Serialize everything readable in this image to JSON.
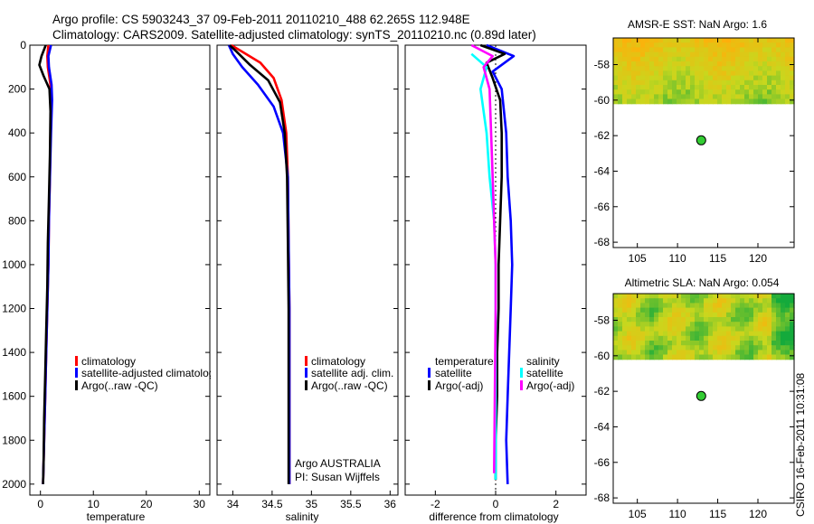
{
  "header": {
    "line1": "Argo profile: CS 5903243_37 09-Feb-2011 20110210_488 62.265S 112.948E",
    "line2": "Climatology: CARS2009. Satellite-adjusted climatology: synTS_20110210.nc (0.89d later)"
  },
  "credit": "CSIRO 16-Feb-2011 10:31:08",
  "colors": {
    "red": "#ff0000",
    "blue": "#0000ff",
    "black": "#000000",
    "cyan": "#00ffff",
    "magenta": "#ff00ff",
    "marker": "#33cc33"
  },
  "chart_data": [
    {
      "id": "temperature",
      "type": "line",
      "xlabel": "temperature",
      "xlim": [
        -2,
        32
      ],
      "ylim": [
        2050,
        0
      ],
      "xticks": [
        0,
        10,
        20,
        30
      ],
      "yticks": [
        0,
        200,
        400,
        600,
        800,
        1000,
        1200,
        1400,
        1600,
        1800,
        2000
      ],
      "legend": [
        "climatology",
        "satellite-adjusted climatology",
        "Argo(..raw -QC)"
      ],
      "series": [
        {
          "name": "climatology",
          "color": "red",
          "points": [
            [
              1.5,
              0
            ],
            [
              1.3,
              50
            ],
            [
              1.4,
              100
            ],
            [
              1.9,
              180
            ],
            [
              2.0,
              250
            ],
            [
              1.9,
              400
            ],
            [
              1.8,
              600
            ],
            [
              1.6,
              800
            ],
            [
              1.5,
              1000
            ],
            [
              1.3,
              1200
            ],
            [
              1.1,
              1400
            ],
            [
              0.9,
              1600
            ],
            [
              0.7,
              1800
            ],
            [
              0.5,
              2000
            ]
          ]
        },
        {
          "name": "satellite-adjusted climatology",
          "color": "blue",
          "points": [
            [
              2.0,
              0
            ],
            [
              1.5,
              50
            ],
            [
              1.6,
              100
            ],
            [
              2.1,
              180
            ],
            [
              2.2,
              250
            ],
            [
              2.0,
              400
            ],
            [
              1.8,
              600
            ],
            [
              1.6,
              800
            ],
            [
              1.5,
              1000
            ],
            [
              1.3,
              1200
            ],
            [
              1.1,
              1400
            ],
            [
              0.9,
              1600
            ],
            [
              0.7,
              1800
            ],
            [
              0.5,
              2000
            ]
          ]
        },
        {
          "name": "Argo(..raw -QC)",
          "color": "black",
          "points": [
            [
              1.0,
              0
            ],
            [
              0.2,
              50
            ],
            [
              -0.2,
              90
            ],
            [
              0.6,
              140
            ],
            [
              1.7,
              200
            ],
            [
              1.9,
              300
            ],
            [
              1.8,
              500
            ],
            [
              1.6,
              700
            ],
            [
              1.4,
              900
            ],
            [
              1.3,
              1100
            ],
            [
              1.1,
              1300
            ],
            [
              0.9,
              1500
            ],
            [
              0.7,
              1700
            ],
            [
              0.6,
              1900
            ],
            [
              0.5,
              2000
            ]
          ]
        }
      ]
    },
    {
      "id": "salinity",
      "type": "line",
      "xlabel": "salinity",
      "xlim": [
        33.8,
        36.1
      ],
      "ylim": [
        2050,
        0
      ],
      "xticks": [
        34,
        34.5,
        35,
        35.5,
        36
      ],
      "yticks": [
        0,
        200,
        400,
        600,
        800,
        1000,
        1200,
        1400,
        1600,
        1800,
        2000
      ],
      "legend": [
        "climatology",
        "satellite adj. clim.",
        "Argo(..raw -QC)"
      ],
      "annotation": [
        "Argo AUSTRALIA",
        "PI: Susan Wijffels"
      ],
      "series": [
        {
          "name": "climatology",
          "color": "red",
          "points": [
            [
              33.98,
              0
            ],
            [
              34.12,
              30
            ],
            [
              34.35,
              80
            ],
            [
              34.52,
              150
            ],
            [
              34.62,
              250
            ],
            [
              34.68,
              400
            ],
            [
              34.7,
              600
            ],
            [
              34.71,
              900
            ],
            [
              34.72,
              1200
            ],
            [
              34.72,
              1500
            ],
            [
              34.72,
              2000
            ]
          ]
        },
        {
          "name": "satellite adj. clim.",
          "color": "blue",
          "points": [
            [
              33.95,
              0
            ],
            [
              34.0,
              40
            ],
            [
              34.12,
              100
            ],
            [
              34.32,
              180
            ],
            [
              34.52,
              280
            ],
            [
              34.64,
              400
            ],
            [
              34.7,
              600
            ],
            [
              34.71,
              900
            ],
            [
              34.72,
              1200
            ],
            [
              34.72,
              1500
            ],
            [
              34.72,
              2000
            ]
          ]
        },
        {
          "name": "Argo(..raw -QC)",
          "color": "black",
          "points": [
            [
              33.96,
              0
            ],
            [
              34.05,
              30
            ],
            [
              34.22,
              90
            ],
            [
              34.45,
              160
            ],
            [
              34.6,
              260
            ],
            [
              34.66,
              400
            ],
            [
              34.69,
              600
            ],
            [
              34.7,
              900
            ],
            [
              34.71,
              1200
            ],
            [
              34.71,
              1500
            ],
            [
              34.71,
              2000
            ]
          ]
        }
      ]
    },
    {
      "id": "difference",
      "type": "line",
      "xlabel": "difference from climatology",
      "xlim": [
        -3,
        3
      ],
      "ylim": [
        2050,
        0
      ],
      "xticks": [
        -2,
        0,
        2
      ],
      "yticks": [
        0,
        200,
        400,
        600,
        800,
        1000,
        1200,
        1400,
        1600,
        1800,
        2000
      ],
      "legend": [
        "temperature",
        "satellite",
        "Argo(-adj)",
        "salinity",
        "satellite",
        "Argo(-adj)"
      ],
      "series": [
        {
          "name": "satellite",
          "color": "blue",
          "points": [
            [
              -0.3,
              0
            ],
            [
              0.6,
              50
            ],
            [
              -0.1,
              120
            ],
            [
              0.2,
              200
            ],
            [
              0.35,
              400
            ],
            [
              0.4,
              600
            ],
            [
              0.5,
              800
            ],
            [
              0.55,
              1000
            ],
            [
              0.5,
              1200
            ],
            [
              0.45,
              1400
            ],
            [
              0.4,
              1600
            ],
            [
              0.35,
              1800
            ],
            [
              0.4,
              2000
            ]
          ]
        },
        {
          "name": "Argo(-adj)",
          "color": "black",
          "points": [
            [
              -0.5,
              0
            ],
            [
              0.3,
              40
            ],
            [
              -0.3,
              80
            ],
            [
              -0.1,
              150
            ],
            [
              0.15,
              250
            ],
            [
              0.2,
              400
            ],
            [
              0.2,
              600
            ],
            [
              0.15,
              800
            ],
            [
              0.1,
              1000
            ],
            [
              0.1,
              1200
            ],
            [
              0.05,
              1400
            ],
            [
              0.05,
              1600
            ],
            [
              0.0,
              1800
            ],
            [
              0.0,
              1980
            ]
          ]
        },
        {
          "name": "satellite",
          "color": "cyan",
          "points": [
            [
              -0.8,
              40
            ],
            [
              -0.3,
              100
            ],
            [
              -0.5,
              200
            ],
            [
              -0.3,
              400
            ],
            [
              -0.2,
              600
            ],
            [
              -0.05,
              800
            ],
            [
              0.0,
              1000
            ],
            [
              0.0,
              1200
            ],
            [
              0.0,
              1500
            ],
            [
              0.0,
              1980
            ]
          ]
        },
        {
          "name": "Argo(-adj)",
          "color": "magenta",
          "points": [
            [
              -0.8,
              0
            ],
            [
              -0.1,
              50
            ],
            [
              -0.4,
              100
            ],
            [
              -0.2,
              200
            ],
            [
              -0.15,
              400
            ],
            [
              -0.1,
              600
            ],
            [
              -0.05,
              800
            ],
            [
              0.0,
              1000
            ],
            [
              0.0,
              1200
            ],
            [
              -0.02,
              1500
            ],
            [
              -0.05,
              1950
            ]
          ]
        }
      ]
    },
    {
      "id": "sst-map",
      "type": "heatmap",
      "title": "AMSR-E SST: NaN Argo: 1.6",
      "xlim": [
        102,
        124.5
      ],
      "ylim": [
        -68.3,
        -56.5
      ],
      "xticks": [
        105,
        110,
        115,
        120
      ],
      "yticks": [
        -58,
        -60,
        -62,
        -64,
        -66,
        -68
      ],
      "data_lat_range": [
        -60.2,
        -56.5
      ],
      "float_position": [
        112.948,
        -62.265
      ]
    },
    {
      "id": "sla-map",
      "type": "heatmap",
      "title": "Altimetric SLA: NaN Argo: 0.054",
      "xlim": [
        102,
        124.5
      ],
      "ylim": [
        -68.3,
        -56.5
      ],
      "xticks": [
        105,
        110,
        115,
        120
      ],
      "yticks": [
        -58,
        -60,
        -62,
        -64,
        -66,
        -68
      ],
      "data_lat_range": [
        -60.2,
        -56.5
      ],
      "float_position": [
        112.948,
        -62.265
      ]
    }
  ]
}
